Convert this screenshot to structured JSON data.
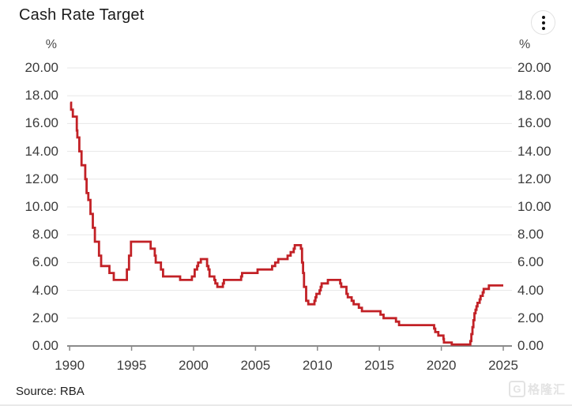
{
  "header": {
    "title": "Cash Rate Target",
    "menu_icon": "kebab-menu"
  },
  "chart_data": {
    "type": "line",
    "step_interpolation": true,
    "title": "Cash Rate Target",
    "unit_left": "%",
    "unit_right": "%",
    "ylabel": "%",
    "ylim": [
      0,
      20
    ],
    "yticks": [
      0,
      2,
      4,
      6,
      8,
      10,
      12,
      14,
      16,
      18,
      20
    ],
    "ytick_decimals": 2,
    "xlim": [
      1989.8,
      2025.7
    ],
    "xticks": [
      1990,
      1995,
      2000,
      2005,
      2010,
      2015,
      2020,
      2025
    ],
    "grid": true,
    "legend_position": "none",
    "line_color": "#c22126",
    "grid_color": "#e7e7e7",
    "axis_color": "#8a8a8a",
    "label_color": "#3c3c3c",
    "series": [
      {
        "name": "Cash Rate Target",
        "points": [
          [
            1990.04,
            17.5
          ],
          [
            1990.12,
            17.0
          ],
          [
            1990.26,
            16.5
          ],
          [
            1990.58,
            15.5
          ],
          [
            1990.62,
            15.0
          ],
          [
            1990.78,
            14.0
          ],
          [
            1990.96,
            13.0
          ],
          [
            1991.26,
            12.0
          ],
          [
            1991.37,
            11.0
          ],
          [
            1991.51,
            10.5
          ],
          [
            1991.68,
            9.5
          ],
          [
            1991.87,
            8.5
          ],
          [
            1992.04,
            7.5
          ],
          [
            1992.37,
            6.5
          ],
          [
            1992.54,
            5.75
          ],
          [
            1993.21,
            5.25
          ],
          [
            1993.56,
            4.75
          ],
          [
            1994.62,
            5.5
          ],
          [
            1994.79,
            6.5
          ],
          [
            1994.95,
            7.5
          ],
          [
            1996.54,
            7.0
          ],
          [
            1996.87,
            6.5
          ],
          [
            1996.95,
            6.0
          ],
          [
            1997.37,
            5.5
          ],
          [
            1997.54,
            5.0
          ],
          [
            1998.92,
            4.75
          ],
          [
            1999.87,
            5.0
          ],
          [
            2000.09,
            5.5
          ],
          [
            2000.29,
            5.75
          ],
          [
            2000.37,
            6.0
          ],
          [
            2000.59,
            6.25
          ],
          [
            2001.09,
            5.75
          ],
          [
            2001.2,
            5.5
          ],
          [
            2001.29,
            5.0
          ],
          [
            2001.68,
            4.75
          ],
          [
            2001.76,
            4.5
          ],
          [
            2001.92,
            4.25
          ],
          [
            2002.37,
            4.5
          ],
          [
            2002.45,
            4.75
          ],
          [
            2003.84,
            5.0
          ],
          [
            2003.92,
            5.25
          ],
          [
            2005.17,
            5.5
          ],
          [
            2006.34,
            5.75
          ],
          [
            2006.59,
            6.0
          ],
          [
            2006.84,
            6.25
          ],
          [
            2007.59,
            6.5
          ],
          [
            2007.84,
            6.75
          ],
          [
            2008.09,
            7.0
          ],
          [
            2008.17,
            7.25
          ],
          [
            2008.67,
            7.0
          ],
          [
            2008.76,
            6.0
          ],
          [
            2008.84,
            5.25
          ],
          [
            2008.92,
            4.25
          ],
          [
            2009.09,
            3.25
          ],
          [
            2009.26,
            3.0
          ],
          [
            2009.76,
            3.25
          ],
          [
            2009.84,
            3.5
          ],
          [
            2009.92,
            3.75
          ],
          [
            2010.17,
            4.0
          ],
          [
            2010.26,
            4.25
          ],
          [
            2010.34,
            4.5
          ],
          [
            2010.84,
            4.75
          ],
          [
            2011.84,
            4.5
          ],
          [
            2011.92,
            4.25
          ],
          [
            2012.34,
            3.75
          ],
          [
            2012.45,
            3.5
          ],
          [
            2012.76,
            3.25
          ],
          [
            2012.92,
            3.0
          ],
          [
            2013.34,
            2.75
          ],
          [
            2013.59,
            2.5
          ],
          [
            2015.09,
            2.25
          ],
          [
            2015.34,
            2.0
          ],
          [
            2016.34,
            1.75
          ],
          [
            2016.59,
            1.5
          ],
          [
            2019.42,
            1.25
          ],
          [
            2019.51,
            1.0
          ],
          [
            2019.76,
            0.75
          ],
          [
            2020.17,
            0.5
          ],
          [
            2020.21,
            0.25
          ],
          [
            2020.84,
            0.1
          ],
          [
            2022.34,
            0.35
          ],
          [
            2022.42,
            0.85
          ],
          [
            2022.51,
            1.35
          ],
          [
            2022.59,
            1.85
          ],
          [
            2022.67,
            2.35
          ],
          [
            2022.76,
            2.6
          ],
          [
            2022.84,
            2.85
          ],
          [
            2022.92,
            3.1
          ],
          [
            2023.09,
            3.35
          ],
          [
            2023.17,
            3.6
          ],
          [
            2023.34,
            3.85
          ],
          [
            2023.42,
            4.1
          ],
          [
            2023.84,
            4.35
          ],
          [
            2025.0,
            4.35
          ]
        ]
      }
    ]
  },
  "footer": {
    "source": "Source: RBA",
    "watermark_logo": "G",
    "watermark_text": "格隆汇"
  }
}
